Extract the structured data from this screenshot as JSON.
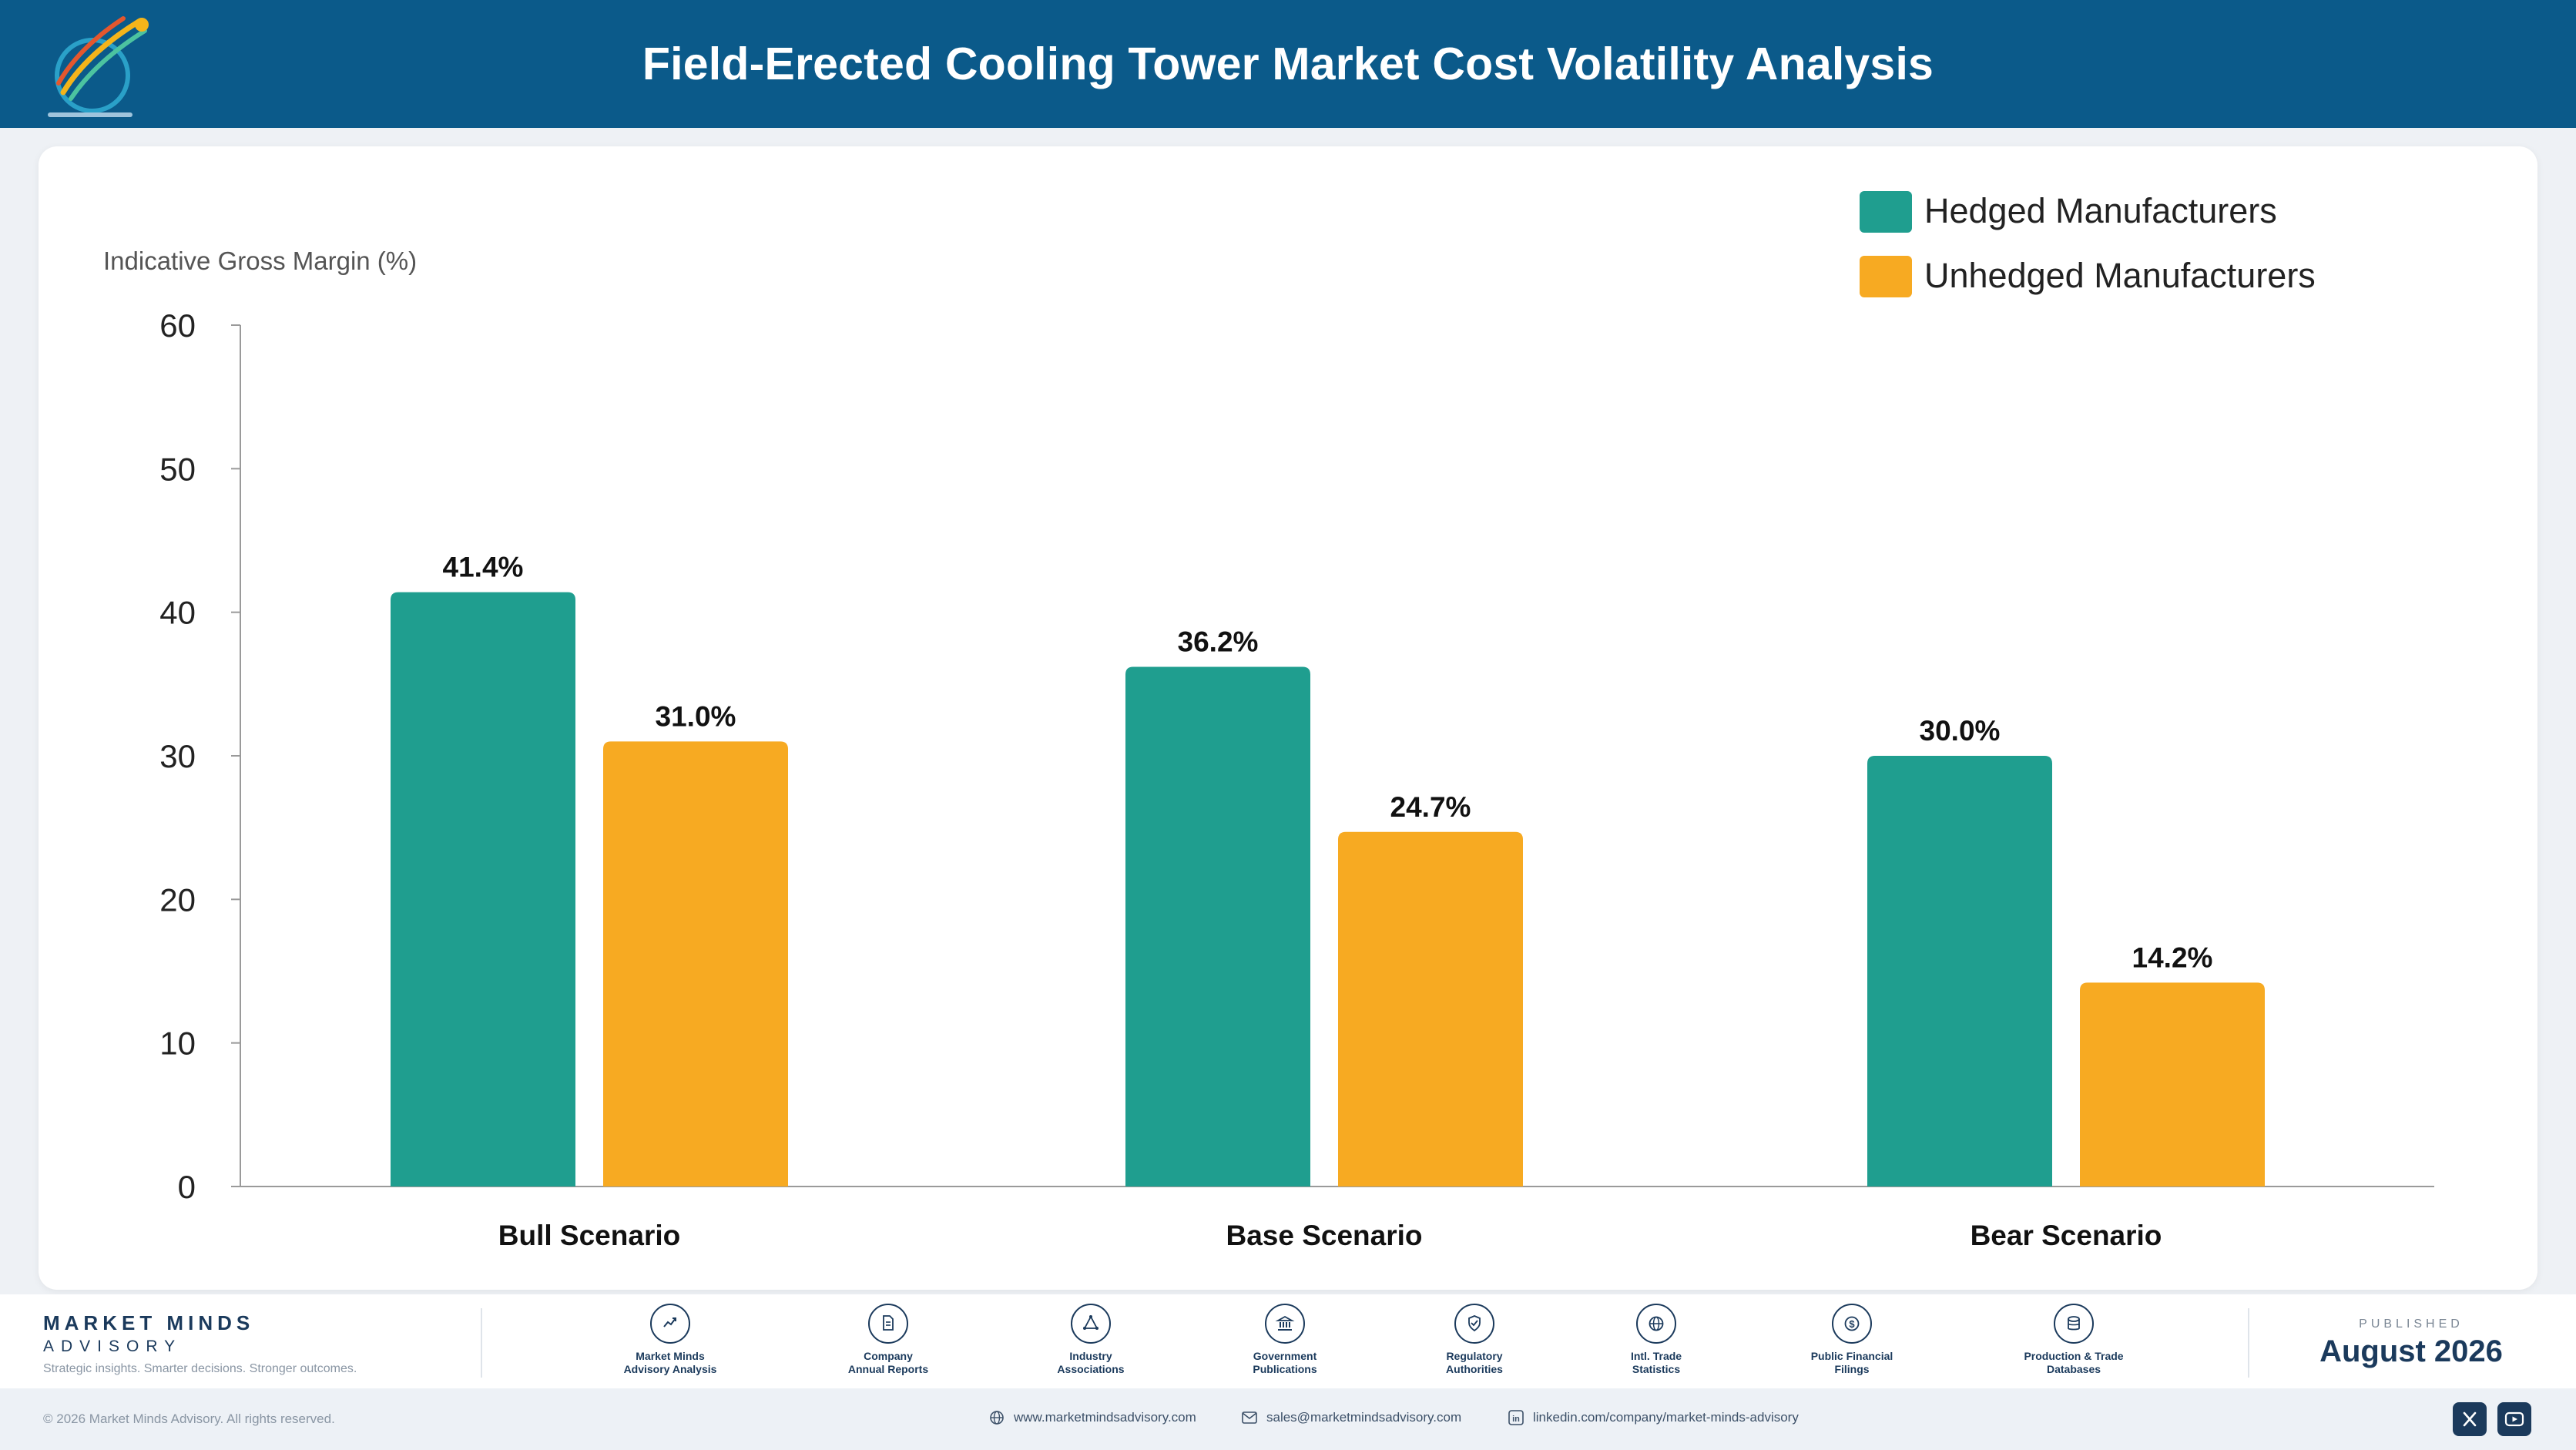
{
  "header": {
    "title": "Field-Erected Cooling Tower Market Cost Volatility Analysis"
  },
  "chart_data": {
    "type": "bar",
    "title": "Field-Erected Cooling Tower Market Cost Volatility Analysis",
    "ylabel": "Indicative Gross Margin (%)",
    "xlabel": "",
    "ylim": [
      0,
      60
    ],
    "yticks": [
      "0",
      "10",
      "20",
      "30",
      "40",
      "50",
      "60"
    ],
    "categories": [
      "Bull Scenario",
      "Base Scenario",
      "Bear Scenario"
    ],
    "legend_position": "top-right",
    "grid": false,
    "series": [
      {
        "name": "Hedged Manufacturers",
        "color": "#1f9e8f",
        "values": [
          41.4,
          36.2,
          30.0
        ],
        "labels": [
          "41.4%",
          "36.2%",
          "30.0%"
        ]
      },
      {
        "name": "Unhedged Manufacturers",
        "color": "#f7aa22",
        "values": [
          31.0,
          24.7,
          14.2
        ],
        "labels": [
          "31.0%",
          "24.7%",
          "14.2%"
        ]
      }
    ]
  },
  "footer": {
    "brand_name": "MARKET MINDS",
    "brand_sub": "ADVISORY",
    "tagline": "Strategic insights. Smarter decisions. Stronger outcomes.",
    "sources": [
      {
        "label": "Market Minds\nAdvisory Analysis",
        "icon": "trend-chart-icon"
      },
      {
        "label": "Company\nAnnual Reports",
        "icon": "document-icon"
      },
      {
        "label": "Industry\nAssociations",
        "icon": "network-icon"
      },
      {
        "label": "Government\nPublications",
        "icon": "government-building-icon"
      },
      {
        "label": "Regulatory\nAuthorities",
        "icon": "shield-check-icon"
      },
      {
        "label": "Intl. Trade\nStatistics",
        "icon": "globe-icon"
      },
      {
        "label": "Public Financial\nFilings",
        "icon": "dollar-coin-icon"
      },
      {
        "label": "Production & Trade\nDatabases",
        "icon": "database-icon"
      }
    ],
    "published_label": "PUBLISHED",
    "published_date": "August 2026"
  },
  "bottom_bar": {
    "copyright": "© 2026 Market Minds Advisory. All rights reserved.",
    "website": "www.marketmindsadvisory.com",
    "email": "sales@marketmindsadvisory.com",
    "linkedin": "linkedin.com/company/market-minds-advisory"
  }
}
